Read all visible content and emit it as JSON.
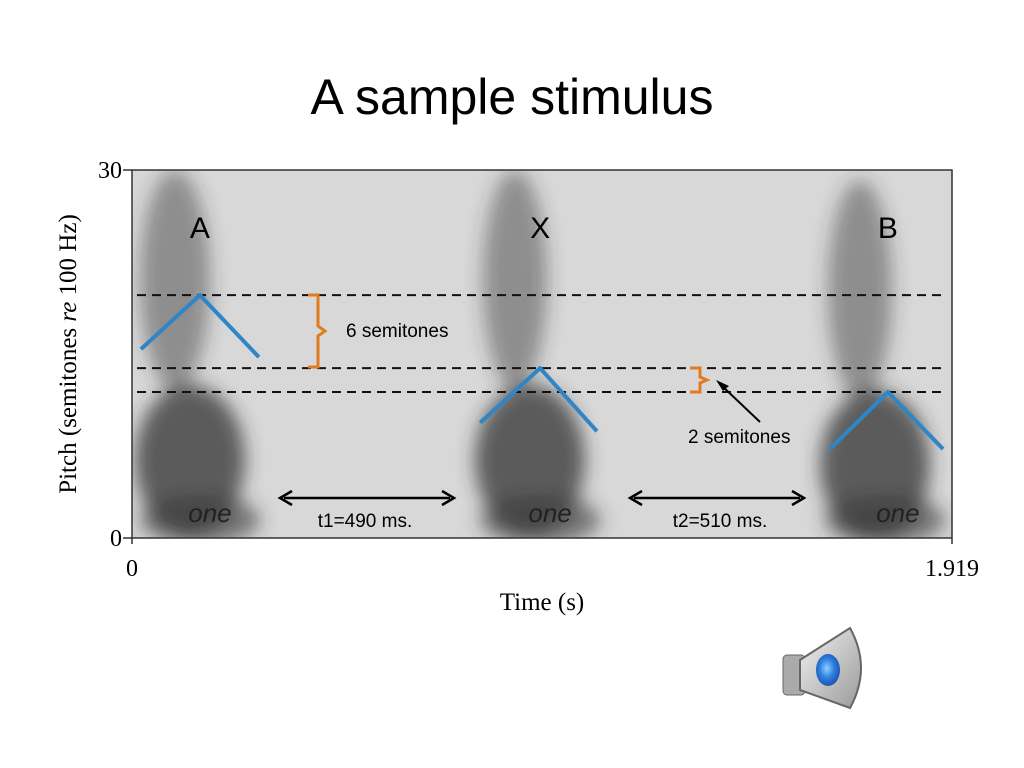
{
  "title": "A sample stimulus",
  "chart_data": {
    "type": "line",
    "xlabel": "Time (s)",
    "ylabel": [
      "Pitch (semitones ",
      "re",
      " 100 Hz)"
    ],
    "xlim": [
      0,
      1.919
    ],
    "xticks": [
      0,
      1.919
    ],
    "ylim": [
      0,
      30
    ],
    "yticks": [
      0,
      30
    ],
    "series": [
      {
        "name": "A",
        "color": "#2e86c8",
        "x": [
          0.021,
          0.159,
          0.297
        ],
        "values": [
          15.4,
          19.8,
          14.75
        ]
      },
      {
        "name": "X",
        "color": "#2e86c8",
        "x": [
          0.815,
          0.955,
          1.088
        ],
        "values": [
          9.4,
          13.85,
          8.7
        ]
      },
      {
        "name": "B",
        "color": "#2e86c8",
        "x": [
          1.633,
          1.769,
          1.898
        ],
        "values": [
          7.25,
          11.9,
          7.25
        ]
      }
    ],
    "reference_lines": [
      19.8,
      13.85,
      11.9
    ],
    "syllables": [
      "one",
      "one",
      "one"
    ],
    "annotations": [
      "6 semitones",
      "2 semitones",
      "t1=490 ms.",
      "t2=510 ms."
    ]
  }
}
